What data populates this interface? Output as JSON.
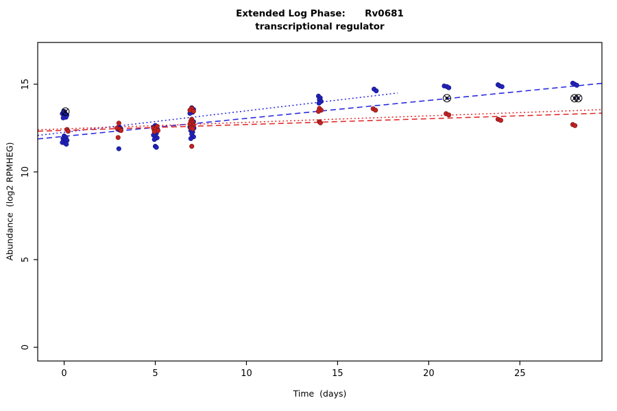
{
  "chart_data": {
    "type": "scatter",
    "title": "Extended Log Phase:      Rv0681",
    "subtitle": "transcriptional regulator",
    "xlabel": "Time  (days)",
    "ylabel": "Abundance  (log2 RPMHEG)",
    "xlim": [
      -1.45,
      29.5
    ],
    "ylim": [
      -0.78,
      17.38
    ],
    "xticks": [
      0,
      5,
      10,
      15,
      20,
      25
    ],
    "yticks": [
      0,
      5,
      10,
      15
    ],
    "grid": false,
    "legend": "none",
    "series": [
      {
        "name": "condition-blue",
        "color": "#2222c0",
        "stroke": "#15157a",
        "points": [
          [
            0.0,
            13.45
          ],
          [
            -0.1,
            13.32
          ],
          [
            0.08,
            13.3
          ],
          [
            0.15,
            13.24
          ],
          [
            0.0,
            13.18
          ],
          [
            0.1,
            13.12
          ],
          [
            -0.05,
            13.08
          ],
          [
            0.0,
            12.05
          ],
          [
            0.1,
            11.97
          ],
          [
            -0.06,
            11.9
          ],
          [
            0.05,
            11.85
          ],
          [
            0.16,
            11.8
          ],
          [
            0.0,
            11.74
          ],
          [
            -0.1,
            11.68
          ],
          [
            0.06,
            11.63
          ],
          [
            0.12,
            11.58
          ],
          [
            3.0,
            12.55
          ],
          [
            3.1,
            12.48
          ],
          [
            2.95,
            12.43
          ],
          [
            3.05,
            12.38
          ],
          [
            3.0,
            11.32
          ],
          [
            5.0,
            12.65
          ],
          [
            4.9,
            12.55
          ],
          [
            5.05,
            12.5
          ],
          [
            5.12,
            12.44
          ],
          [
            4.95,
            12.38
          ],
          [
            5.0,
            12.3
          ],
          [
            5.06,
            12.2
          ],
          [
            4.9,
            12.1
          ],
          [
            5.0,
            12.0
          ],
          [
            5.1,
            11.94
          ],
          [
            4.95,
            11.85
          ],
          [
            5.0,
            11.46
          ],
          [
            5.06,
            11.4
          ],
          [
            7.0,
            13.66
          ],
          [
            7.1,
            13.56
          ],
          [
            6.95,
            13.46
          ],
          [
            7.05,
            13.4
          ],
          [
            6.9,
            13.34
          ],
          [
            7.0,
            12.96
          ],
          [
            7.1,
            12.86
          ],
          [
            6.95,
            12.8
          ],
          [
            7.02,
            12.7
          ],
          [
            7.06,
            12.62
          ],
          [
            6.9,
            12.55
          ],
          [
            7.12,
            12.5
          ],
          [
            7.0,
            12.42
          ],
          [
            6.95,
            12.35
          ],
          [
            7.05,
            12.28
          ],
          [
            7.0,
            12.15
          ],
          [
            7.1,
            12.0
          ],
          [
            6.95,
            11.9
          ],
          [
            13.95,
            14.32
          ],
          [
            14.05,
            14.22
          ],
          [
            14.0,
            14.12
          ],
          [
            14.1,
            14.02
          ],
          [
            13.98,
            13.92
          ],
          [
            17.0,
            14.72
          ],
          [
            17.12,
            14.62
          ],
          [
            20.85,
            14.9
          ],
          [
            21.0,
            14.86
          ],
          [
            21.1,
            14.8
          ],
          [
            23.8,
            14.97
          ],
          [
            23.9,
            14.9
          ],
          [
            24.02,
            14.86
          ],
          [
            27.9,
            15.06
          ],
          [
            28.0,
            15.0
          ],
          [
            28.12,
            14.94
          ]
        ]
      },
      {
        "name": "condition-red",
        "color": "#c42222",
        "stroke": "#7a1414",
        "points": [
          [
            0.16,
            12.42
          ],
          [
            0.22,
            12.32
          ],
          [
            3.0,
            12.78
          ],
          [
            2.9,
            12.5
          ],
          [
            3.06,
            12.44
          ],
          [
            3.12,
            12.36
          ],
          [
            2.96,
            11.96
          ],
          [
            5.1,
            12.6
          ],
          [
            4.9,
            12.5
          ],
          [
            5.0,
            12.44
          ],
          [
            5.15,
            12.36
          ],
          [
            4.95,
            12.3
          ],
          [
            7.0,
            13.62
          ],
          [
            6.9,
            13.52
          ],
          [
            7.1,
            13.46
          ],
          [
            7.0,
            13.0
          ],
          [
            6.95,
            12.9
          ],
          [
            7.05,
            12.84
          ],
          [
            7.0,
            12.78
          ],
          [
            6.9,
            12.72
          ],
          [
            7.1,
            12.66
          ],
          [
            7.0,
            12.58
          ],
          [
            6.95,
            12.52
          ],
          [
            7.05,
            12.46
          ],
          [
            7.0,
            11.46
          ],
          [
            14.0,
            13.62
          ],
          [
            14.1,
            13.52
          ],
          [
            13.95,
            13.45
          ],
          [
            14.0,
            12.86
          ],
          [
            14.06,
            12.8
          ],
          [
            16.95,
            13.6
          ],
          [
            17.08,
            13.52
          ],
          [
            20.95,
            13.32
          ],
          [
            21.1,
            13.25
          ],
          [
            23.8,
            13.0
          ],
          [
            23.95,
            12.94
          ],
          [
            27.9,
            12.7
          ],
          [
            28.02,
            12.64
          ]
        ]
      }
    ],
    "trend_lines": [
      {
        "name": "blue-dashed-fit",
        "color": "#2a2ae0",
        "style": "dashed",
        "x1": -1.45,
        "y1": 11.88,
        "x2": 29.5,
        "y2": 15.05
      },
      {
        "name": "blue-dotted-fit",
        "color": "#2a2ae0",
        "style": "dotted",
        "x1": -1.45,
        "y1": 12.08,
        "x2": 18.3,
        "y2": 14.5
      },
      {
        "name": "red-dotted-fit",
        "color": "#e02a2a",
        "style": "dotted",
        "x1": -1.45,
        "y1": 12.4,
        "x2": 29.5,
        "y2": 13.55
      },
      {
        "name": "red-dashed-fit",
        "color": "#e02a2a",
        "style": "dashed",
        "x1": -1.45,
        "y1": 12.32,
        "x2": 29.5,
        "y2": 13.35
      }
    ],
    "outlier_markers": {
      "color": "#000000",
      "dot_color": "#1a1a70",
      "points": [
        [
          0.07,
          13.44
        ],
        [
          21.0,
          14.2
        ],
        [
          28.0,
          14.2
        ],
        [
          28.2,
          14.2
        ]
      ]
    },
    "axis_color": "#000000"
  }
}
